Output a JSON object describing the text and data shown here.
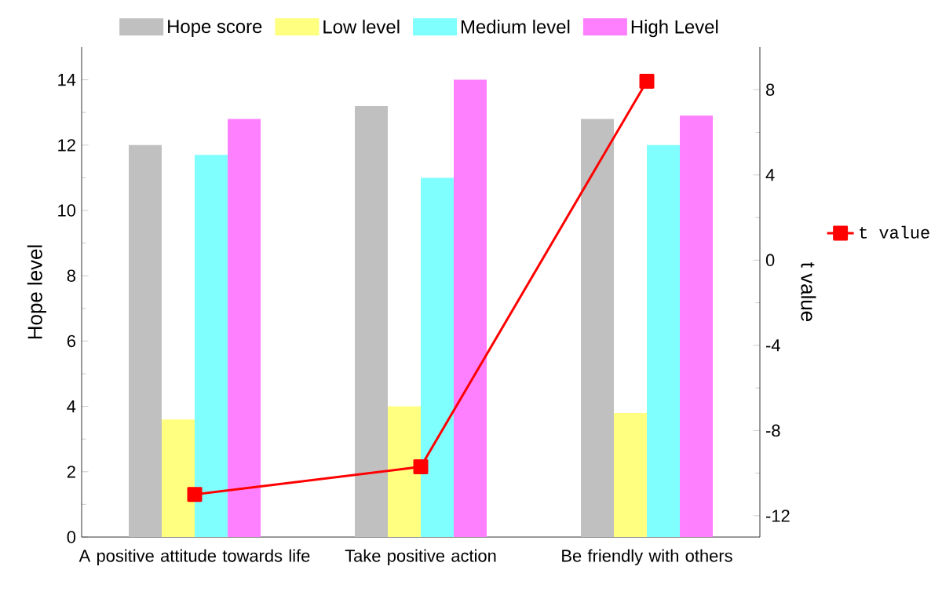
{
  "chart_data": {
    "type": "bar",
    "categories": [
      "A positive attitude towards life",
      "Take positive action",
      "Be friendly with others"
    ],
    "series": [
      {
        "name": "Hope score",
        "color": "#c0c0c0",
        "values": [
          12.0,
          13.2,
          12.8
        ]
      },
      {
        "name": "Low level",
        "color": "#ffff80",
        "values": [
          3.6,
          4.0,
          3.8
        ]
      },
      {
        "name": "Medium level",
        "color": "#80ffff",
        "values": [
          11.7,
          11.0,
          12.0
        ]
      },
      {
        "name": "High Level",
        "color": "#ff80ff",
        "values": [
          12.8,
          14.0,
          12.9
        ]
      },
      {
        "name": "t value",
        "color": "#ff0000",
        "type": "line",
        "axis": "y2",
        "marker": "square",
        "values": [
          -11.0,
          -9.7,
          8.4
        ]
      }
    ],
    "ylabel": "Hope level",
    "y2label": "t value",
    "ylim": [
      0,
      15
    ],
    "yticks": [
      0,
      2,
      4,
      6,
      8,
      10,
      12,
      14
    ],
    "y2lim": [
      -13,
      10
    ],
    "y2ticks": [
      -12,
      -8,
      -4,
      0,
      4,
      8
    ],
    "legend": "top"
  }
}
